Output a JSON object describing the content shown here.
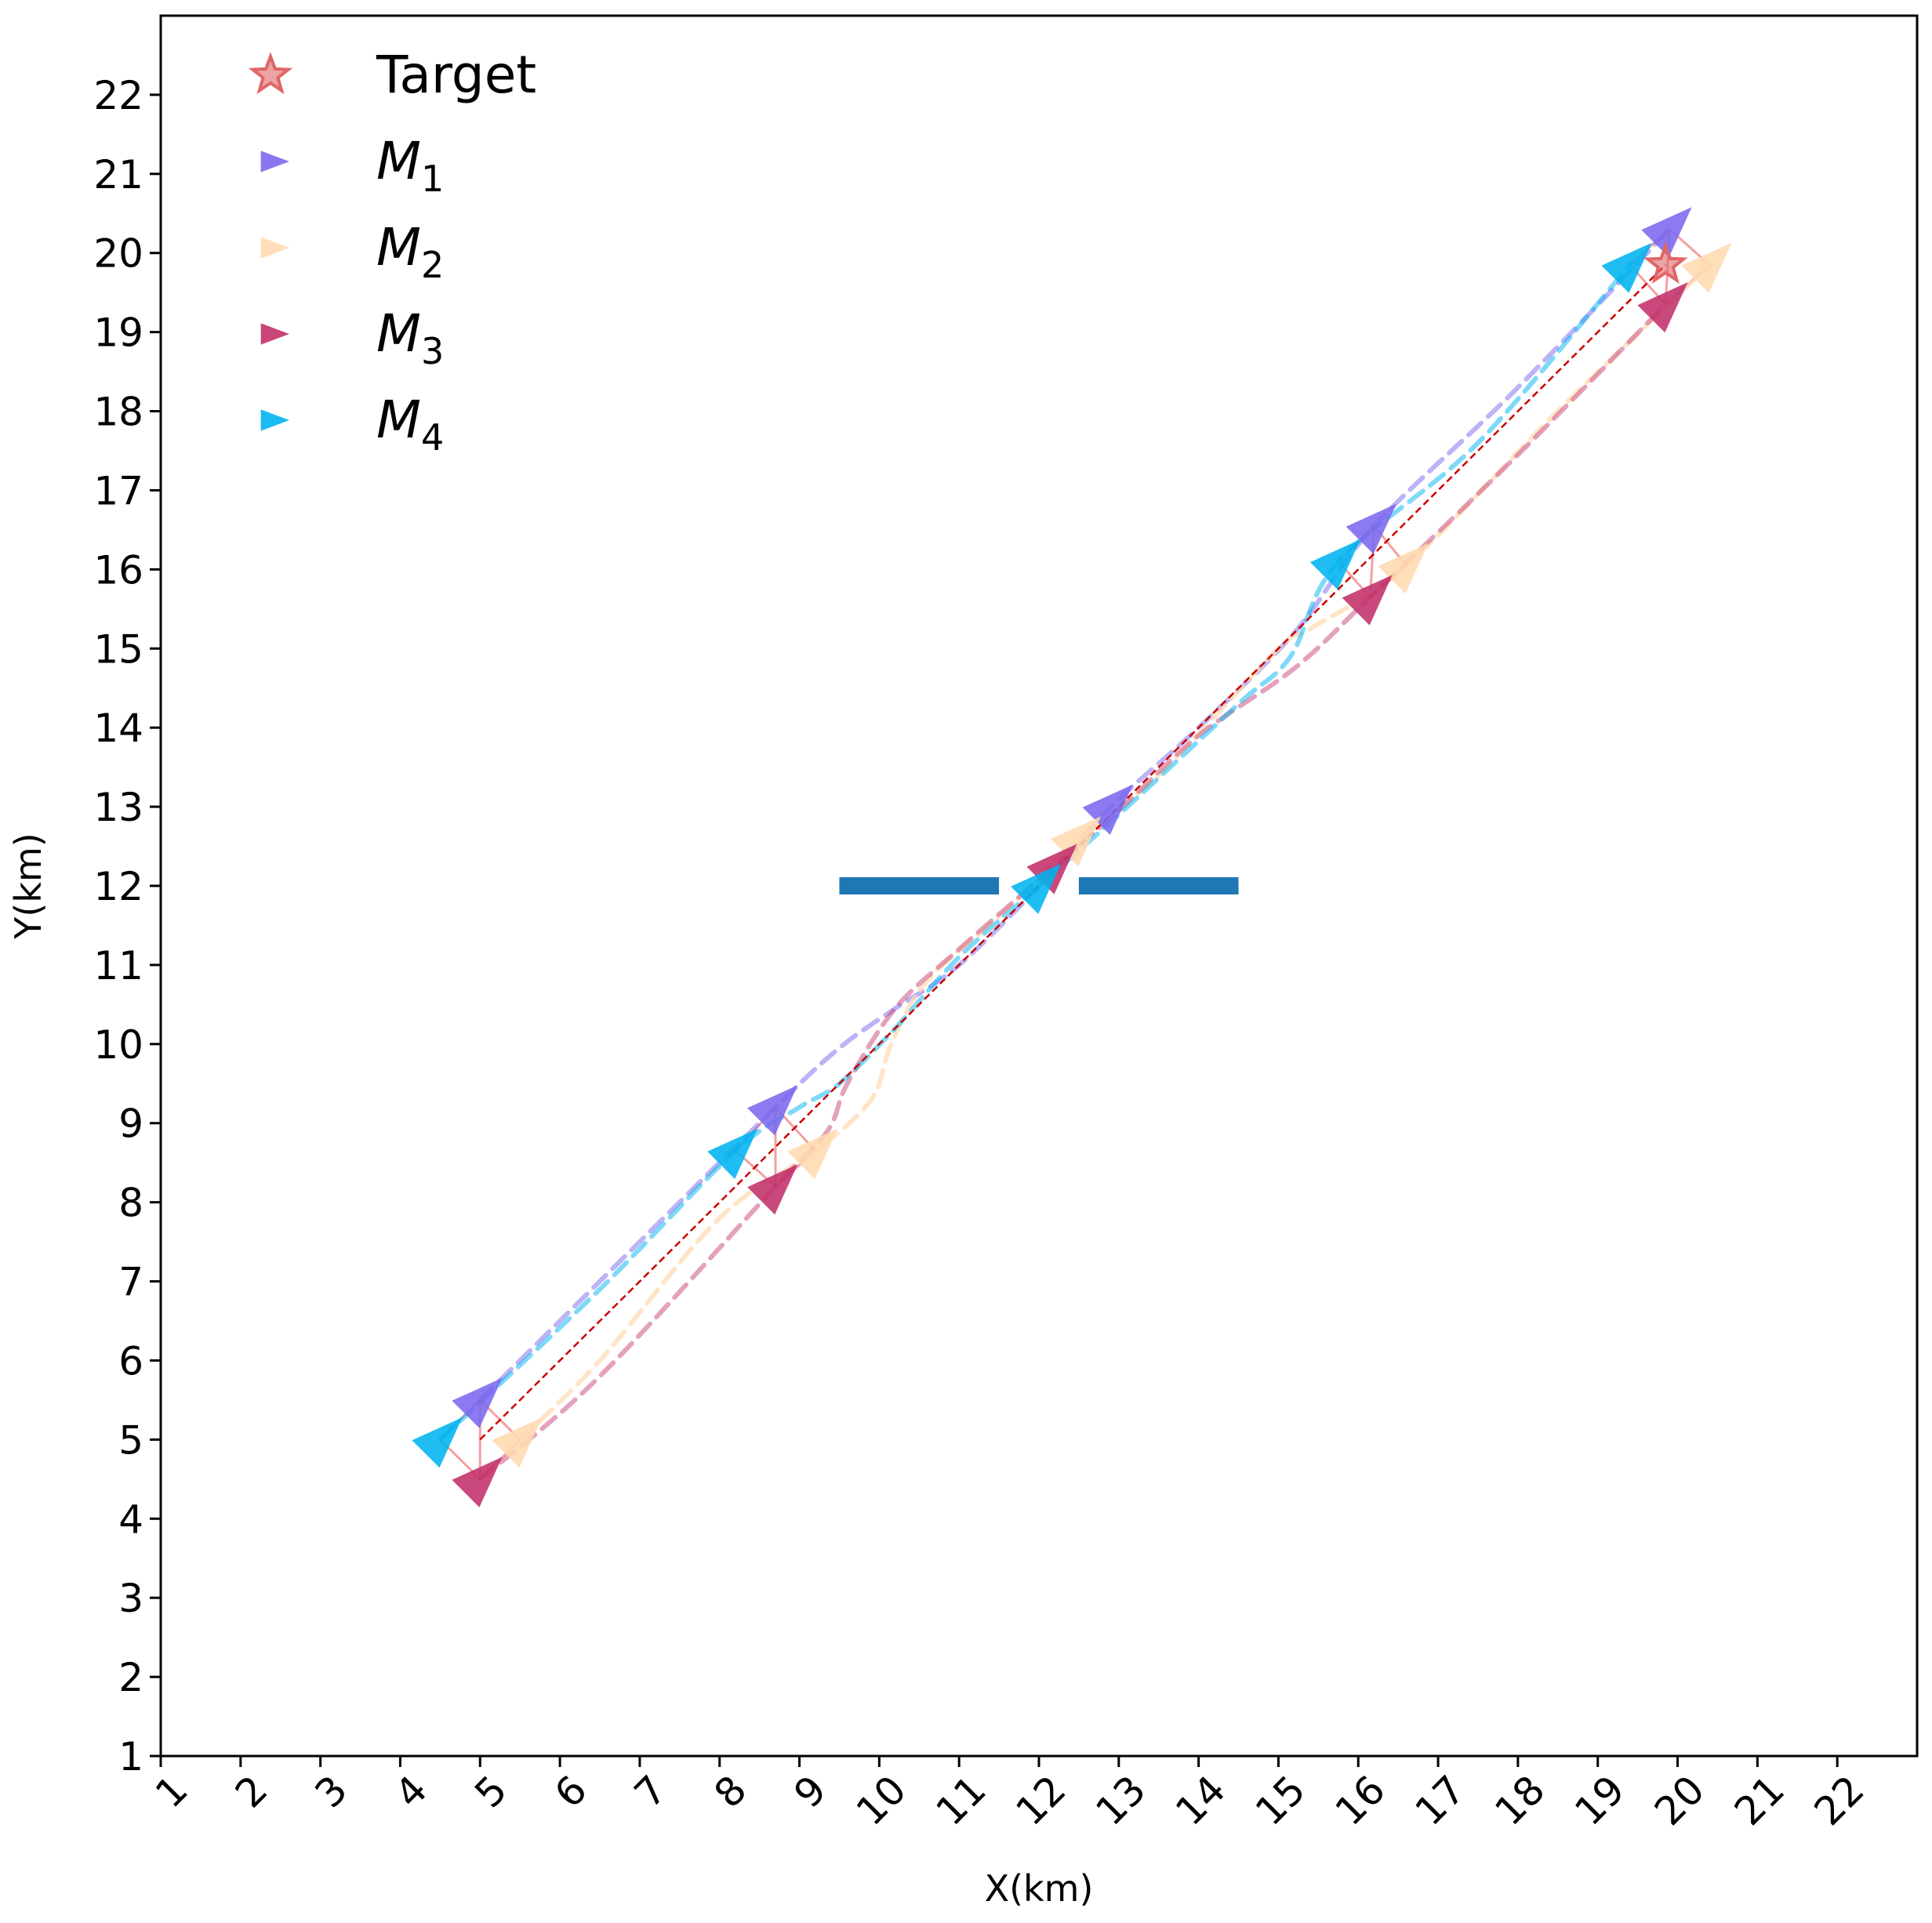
{
  "chart_data": {
    "type": "line",
    "xlabel": "X(km)",
    "ylabel": "Y(km)",
    "xlim": [
      1,
      23
    ],
    "ylim": [
      1,
      23
    ],
    "xticks": [
      1,
      2,
      3,
      4,
      5,
      6,
      7,
      8,
      9,
      10,
      11,
      12,
      13,
      14,
      15,
      16,
      17,
      18,
      19,
      20,
      21,
      22
    ],
    "yticks": [
      1,
      2,
      3,
      4,
      5,
      6,
      7,
      8,
      9,
      10,
      11,
      12,
      13,
      14,
      15,
      16,
      17,
      18,
      19,
      20,
      21,
      22
    ],
    "grid": false,
    "legend": {
      "placement": "top-left",
      "entries": [
        {
          "label": "Target",
          "marker": "star",
          "color": "#e06666"
        },
        {
          "label": "M",
          "sub": "1",
          "marker": "triangle",
          "color": "#7b68ee"
        },
        {
          "label": "M",
          "sub": "2",
          "marker": "triangle",
          "color": "#ffdab0"
        },
        {
          "label": "M",
          "sub": "3",
          "marker": "triangle",
          "color": "#c2306a"
        },
        {
          "label": "M",
          "sub": "4",
          "marker": "triangle",
          "color": "#00b4f0"
        }
      ]
    },
    "target": {
      "x": 19.85,
      "y": 19.85,
      "color": "#e06666"
    },
    "reference_line": {
      "x": [
        5,
        19.85
      ],
      "y": [
        5,
        19.85
      ],
      "color": "#cc0000"
    },
    "obstacles": [
      {
        "x": [
          9.5,
          11.5
        ],
        "y": [
          12,
          12
        ],
        "color": "#1f77b4"
      },
      {
        "x": [
          12.5,
          14.5
        ],
        "y": [
          12,
          12
        ],
        "color": "#1f77b4"
      }
    ],
    "series": [
      {
        "name": "M1",
        "color": "#7b68ee",
        "line_alpha": 0.5,
        "path": [
          [
            5.0,
            5.5
          ],
          [
            6.5,
            7.0
          ],
          [
            8.7,
            9.2
          ],
          [
            9.5,
            9.95
          ],
          [
            10.2,
            10.45
          ],
          [
            11.0,
            11.0
          ],
          [
            12.2,
            12.2
          ],
          [
            12.9,
            13.0
          ],
          [
            14.0,
            14.0
          ],
          [
            15.2,
            15.2
          ],
          [
            16.2,
            16.55
          ],
          [
            18.0,
            18.3
          ],
          [
            19.9,
            20.3
          ]
        ],
        "markers": [
          [
            5.0,
            5.5
          ],
          [
            8.7,
            9.2
          ],
          [
            12.9,
            13.0
          ],
          [
            16.2,
            16.55
          ],
          [
            19.9,
            20.3
          ]
        ]
      },
      {
        "name": "M2",
        "color": "#ffdab0",
        "line_alpha": 0.7,
        "path": [
          [
            5.5,
            5.0
          ],
          [
            6.5,
            6.0
          ],
          [
            8.0,
            7.8
          ],
          [
            9.2,
            8.65
          ],
          [
            9.9,
            9.3
          ],
          [
            10.15,
            10.0
          ],
          [
            10.6,
            10.8
          ],
          [
            11.6,
            11.7
          ],
          [
            12.5,
            12.6
          ],
          [
            13.5,
            13.4
          ],
          [
            15.0,
            15.0
          ],
          [
            15.4,
            15.25
          ],
          [
            16.6,
            16.05
          ],
          [
            18.5,
            18.0
          ],
          [
            20.4,
            19.85
          ]
        ],
        "markers": [
          [
            5.5,
            5.0
          ],
          [
            9.2,
            8.65
          ],
          [
            12.5,
            12.6
          ],
          [
            16.6,
            16.05
          ],
          [
            20.4,
            19.85
          ]
        ]
      },
      {
        "name": "M3",
        "color": "#c2306a",
        "line_alpha": 0.45,
        "path": [
          [
            5.0,
            4.5
          ],
          [
            6.5,
            5.8
          ],
          [
            8.7,
            8.2
          ],
          [
            9.35,
            8.9
          ],
          [
            9.6,
            9.5
          ],
          [
            10.2,
            10.45
          ],
          [
            11.0,
            11.2
          ],
          [
            12.2,
            12.25
          ],
          [
            13.0,
            12.95
          ],
          [
            14.0,
            13.9
          ],
          [
            15.2,
            14.75
          ],
          [
            16.15,
            15.65
          ],
          [
            18.0,
            17.45
          ],
          [
            19.85,
            19.35
          ]
        ],
        "markers": [
          [
            5.0,
            4.5
          ],
          [
            8.7,
            8.2
          ],
          [
            12.2,
            12.25
          ],
          [
            16.15,
            15.65
          ],
          [
            19.85,
            19.35
          ]
        ]
      },
      {
        "name": "M4",
        "color": "#00b4f0",
        "line_alpha": 0.5,
        "path": [
          [
            4.5,
            5.0
          ],
          [
            6.5,
            6.9
          ],
          [
            8.2,
            8.65
          ],
          [
            9.0,
            9.2
          ],
          [
            9.5,
            9.5
          ],
          [
            10.2,
            10.2
          ],
          [
            11.0,
            11.1
          ],
          [
            12.0,
            12.0
          ],
          [
            13.0,
            12.9
          ],
          [
            14.5,
            14.3
          ],
          [
            15.15,
            14.9
          ],
          [
            15.75,
            16.1
          ],
          [
            17.5,
            17.6
          ],
          [
            19.4,
            19.85
          ]
        ],
        "markers": [
          [
            4.5,
            5.0
          ],
          [
            8.2,
            8.65
          ],
          [
            12.0,
            12.0
          ],
          [
            15.75,
            16.1
          ],
          [
            19.4,
            19.85
          ]
        ]
      }
    ],
    "formations": [
      {
        "m1": [
          5.0,
          5.5
        ],
        "m2": [
          5.5,
          5.0
        ],
        "m3": [
          5.0,
          4.5
        ],
        "m4": [
          4.5,
          5.0
        ]
      },
      {
        "m1": [
          8.7,
          9.2
        ],
        "m2": [
          9.2,
          8.65
        ],
        "m3": [
          8.7,
          8.2
        ],
        "m4": [
          8.2,
          8.65
        ]
      },
      {
        "m1": [
          16.2,
          16.55
        ],
        "m2": [
          16.6,
          16.05
        ],
        "m3": [
          16.15,
          15.65
        ],
        "m4": [
          15.75,
          16.1
        ]
      },
      {
        "m1": [
          19.9,
          20.3
        ],
        "m2": [
          20.4,
          19.85
        ],
        "m3": [
          19.85,
          19.35
        ],
        "m4": [
          19.4,
          19.85
        ]
      }
    ],
    "formation_color": "#f08080"
  }
}
